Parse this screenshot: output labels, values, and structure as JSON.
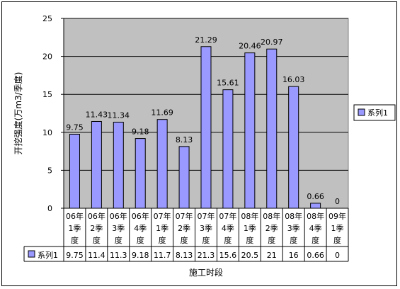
{
  "chart_data": {
    "type": "bar",
    "ylabel": "开挖强度(万m3/季度)",
    "xlabel": "施工时段",
    "ylim": [
      0,
      25
    ],
    "yticks": [
      0,
      5,
      10,
      15,
      20,
      25
    ],
    "grid": true,
    "legend_position": "right",
    "categories": [
      [
        "06年",
        "1季",
        "度"
      ],
      [
        "06年",
        "2季",
        "度"
      ],
      [
        "06年",
        "3季",
        "度"
      ],
      [
        "06年",
        "4季",
        "度"
      ],
      [
        "07年",
        "1季",
        "度"
      ],
      [
        "07年",
        "2季",
        "度"
      ],
      [
        "07年",
        "3季",
        "度"
      ],
      [
        "07年",
        "4季",
        "度"
      ],
      [
        "08年",
        "1季",
        "度"
      ],
      [
        "08年",
        "2季",
        "度"
      ],
      [
        "08年",
        "3季",
        "度"
      ],
      [
        "08年",
        "4季",
        "度"
      ],
      [
        "09年",
        "1季",
        "度"
      ]
    ],
    "series": [
      {
        "name": "系列1",
        "values": [
          9.75,
          11.43,
          11.34,
          9.18,
          11.69,
          8.13,
          21.29,
          15.61,
          20.46,
          20.97,
          16.03,
          0.66,
          0
        ],
        "data_labels": [
          "9.75",
          "11.43",
          "11.34",
          "9.18",
          "11.69",
          "8.13",
          "21.29",
          "15.61",
          "20.46",
          "20.97",
          "16.03",
          "0.66",
          "0"
        ],
        "table_values": [
          "9.75",
          "11.4",
          "11.3",
          "9.18",
          "11.7",
          "8.13",
          "21.3",
          "15.6",
          "20.5",
          "21",
          "16",
          "0.66",
          "0"
        ]
      }
    ],
    "colors": {
      "bar_fill": "#9999ff",
      "bar_stroke": "#000000",
      "plot_background": "#c0c0c0",
      "grid": "#000000"
    }
  }
}
